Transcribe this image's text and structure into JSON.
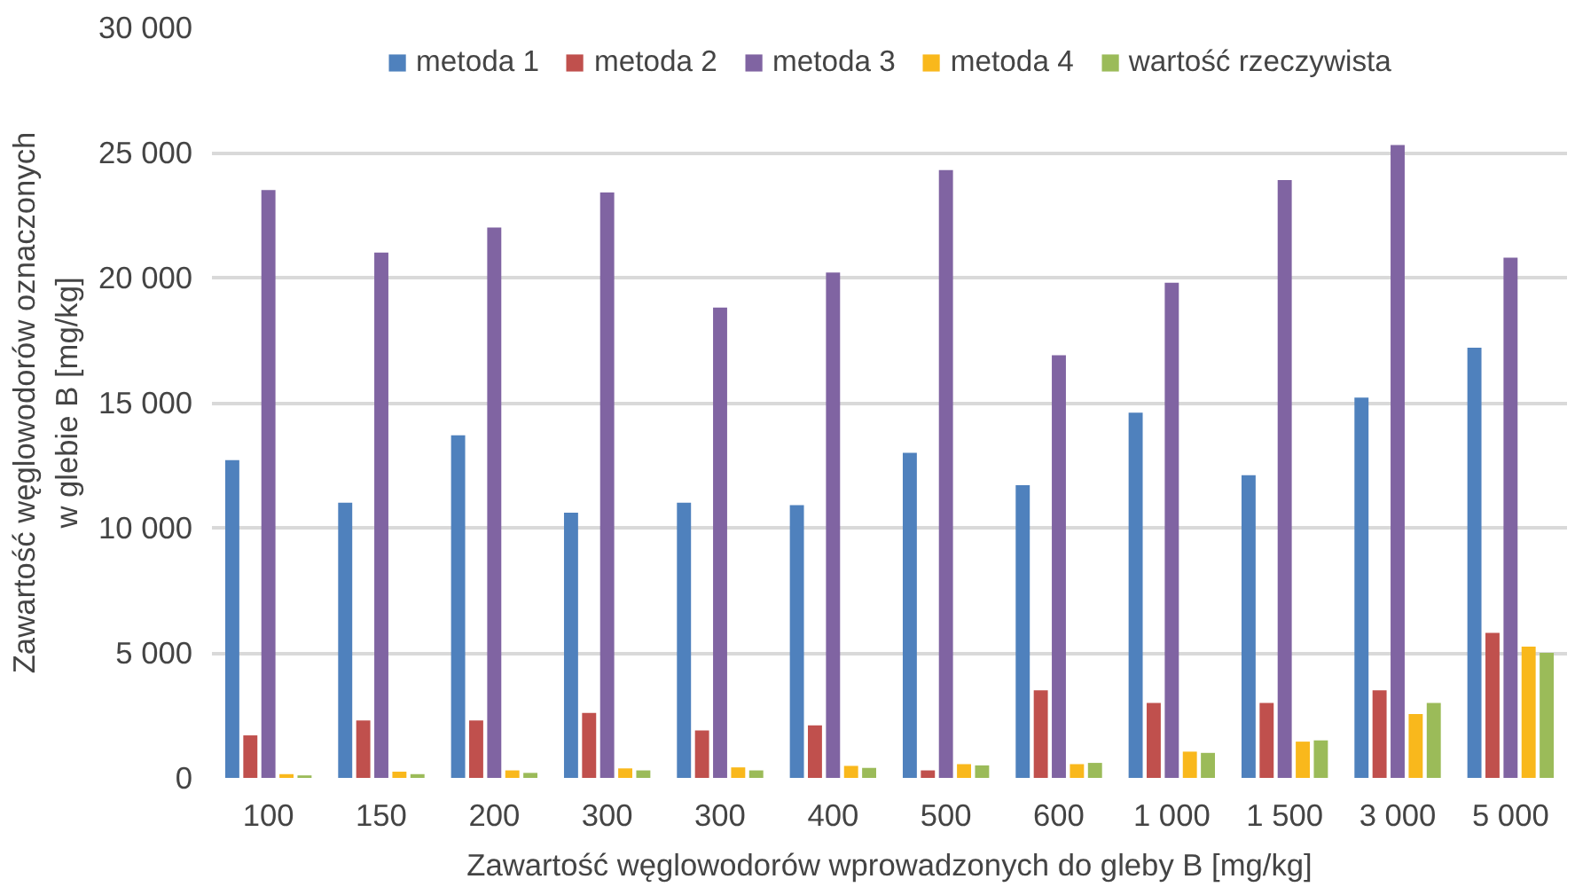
{
  "chart_data": {
    "type": "bar",
    "xlabel": "Zawartość węglowodorów wprowadzonych do gleby B [mg/kg]",
    "ylabel": "Zawartość węglowodorów oznaczonych\nw glebie B [mg/kg]",
    "categories": [
      "100",
      "150",
      "200",
      "300",
      "300",
      "400",
      "500",
      "600",
      "1 000",
      "1 500",
      "3 000",
      "5 000"
    ],
    "series": [
      {
        "name": "metoda 1",
        "color": "#4f81bd",
        "values": [
          12700,
          11000,
          13700,
          10600,
          11000,
          10900,
          13000,
          11700,
          14600,
          12100,
          15200,
          17200
        ]
      },
      {
        "name": "metoda 2",
        "color": "#c0504d",
        "values": [
          1700,
          2300,
          2300,
          2600,
          1900,
          2100,
          300,
          3500,
          3000,
          3000,
          3500,
          5800
        ]
      },
      {
        "name": "metoda 3",
        "color": "#8064a2",
        "values": [
          23500,
          21000,
          22000,
          23400,
          18800,
          20200,
          24300,
          16900,
          19800,
          23900,
          25300,
          20800
        ]
      },
      {
        "name": "metoda 4",
        "color": "#f9b81c",
        "values": [
          150,
          250,
          300,
          380,
          420,
          480,
          550,
          550,
          1050,
          1450,
          2550,
          5250
        ]
      },
      {
        "name": "wartość rzeczywista",
        "color": "#9bbb59",
        "values": [
          100,
          150,
          200,
          300,
          300,
          400,
          500,
          600,
          1000,
          1500,
          3000,
          5000
        ]
      }
    ],
    "ylim": [
      0,
      30000
    ],
    "yticks": [
      {
        "value": 0,
        "label": "0"
      },
      {
        "value": 5000,
        "label": "5 000"
      },
      {
        "value": 10000,
        "label": "10 000"
      },
      {
        "value": 15000,
        "label": "15 000"
      },
      {
        "value": 20000,
        "label": "20 000"
      },
      {
        "value": 25000,
        "label": "25 000"
      },
      {
        "value": 30000,
        "label": "30 000"
      }
    ],
    "grid": "y",
    "legend": "top"
  }
}
